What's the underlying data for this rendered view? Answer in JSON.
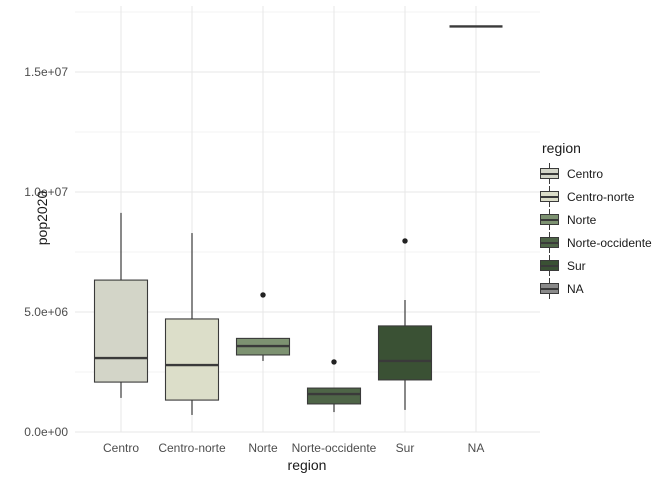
{
  "figure": {
    "background": "#ffffff",
    "grid_major_color": "#e7e7e7",
    "grid_minor_color": "#f3f3f3",
    "box_stroke_color": "#3a3a3a",
    "outlier_color": "#222222",
    "tick_text_color": "#4d4d4d",
    "title_text_color": "#1a1a1a"
  },
  "axes": {
    "x": {
      "title": "region",
      "ticks": [
        "Centro",
        "Centro-norte",
        "Norte",
        "Norte-occidente",
        "Sur",
        "NA"
      ]
    },
    "y": {
      "title": "pop2020",
      "ticks": [
        {
          "label": "0.0e+00",
          "value": 0
        },
        {
          "label": "5.0e+06",
          "value": 5000000
        },
        {
          "label": "1.0e+07",
          "value": 10000000
        },
        {
          "label": "1.5e+07",
          "value": 15000000
        }
      ]
    }
  },
  "legend": {
    "title": "region",
    "items": [
      {
        "label": "Centro",
        "fill": "#d3d5c8"
      },
      {
        "label": "Centro-norte",
        "fill": "#dcdec9"
      },
      {
        "label": "Norte",
        "fill": "#7d9271"
      },
      {
        "label": "Norte-occidente",
        "fill": "#4e6547"
      },
      {
        "label": "Sur",
        "fill": "#3a5134"
      },
      {
        "label": "NA",
        "fill": "#8a8a8a"
      }
    ]
  },
  "chart_data": {
    "type": "boxplot",
    "title": "",
    "xlabel": "region",
    "ylabel": "pop2020",
    "categories": [
      "Centro",
      "Centro-norte",
      "Norte",
      "Norte-occidente",
      "Sur",
      "NA"
    ],
    "ylim": [
      0,
      17750000
    ],
    "y_major_ticks": [
      0,
      5000000,
      10000000,
      15000000
    ],
    "y_minor_ticks": [
      2500000,
      7500000,
      12500000,
      17500000
    ],
    "grid": true,
    "legend_position": "right",
    "series": [
      {
        "category": "Centro",
        "fill": "#d3d5c8",
        "whisker_low": 1420000,
        "q1": 2080000,
        "median": 3080000,
        "q3": 6330000,
        "whisker_high": 9130000,
        "outliers": []
      },
      {
        "category": "Centro-norte",
        "fill": "#dcdec9",
        "whisker_low": 710000,
        "q1": 1330000,
        "median": 2790000,
        "q3": 4710000,
        "whisker_high": 8290000,
        "outliers": []
      },
      {
        "category": "Norte",
        "fill": "#7d9271",
        "whisker_low": 2960000,
        "q1": 3210000,
        "median": 3580000,
        "q3": 3900000,
        "whisker_high": 3900000,
        "outliers": [
          5710000
        ]
      },
      {
        "category": "Norte-occidente",
        "fill": "#4e6547",
        "whisker_low": 830000,
        "q1": 1170000,
        "median": 1580000,
        "q3": 1830000,
        "whisker_high": 1830000,
        "outliers": [
          2920000
        ]
      },
      {
        "category": "Sur",
        "fill": "#3a5134",
        "whisker_low": 920000,
        "q1": 2170000,
        "median": 2960000,
        "q3": 4420000,
        "whisker_high": 5500000,
        "outliers": [
          7960000
        ]
      },
      {
        "category": "NA",
        "fill": "#8a8a8a",
        "whisker_low": 16900000,
        "q1": 16900000,
        "median": 16900000,
        "q3": 16900000,
        "whisker_high": 16900000,
        "outliers": []
      }
    ]
  }
}
